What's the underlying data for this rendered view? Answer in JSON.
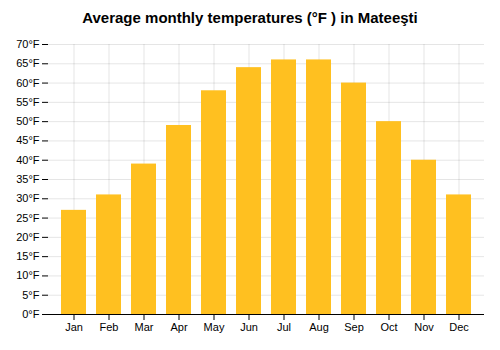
{
  "chart_data": {
    "type": "bar",
    "title": "Average monthly temperatures (°F ) in Mateeşti",
    "categories": [
      "Jan",
      "Feb",
      "Mar",
      "Apr",
      "May",
      "Jun",
      "Jul",
      "Aug",
      "Sep",
      "Oct",
      "Nov",
      "Dec"
    ],
    "values": [
      27,
      31,
      39,
      49,
      58,
      64,
      66,
      66,
      60,
      50,
      40,
      31
    ],
    "color": "#FFC020",
    "ylim": [
      0,
      70
    ],
    "yticks": [
      {
        "value": 0,
        "label": "0°F"
      },
      {
        "value": 5,
        "label": "5°F"
      },
      {
        "value": 10,
        "label": "10°F"
      },
      {
        "value": 15,
        "label": "15°F"
      },
      {
        "value": 20,
        "label": "20°F"
      },
      {
        "value": 25,
        "label": "25°F"
      },
      {
        "value": 30,
        "label": "30°F"
      },
      {
        "value": 35,
        "label": "35°F"
      },
      {
        "value": 40,
        "label": "40°F"
      },
      {
        "value": 45,
        "label": "45°F"
      },
      {
        "value": 50,
        "label": "50°F"
      },
      {
        "value": 55,
        "label": "55°F"
      },
      {
        "value": 60,
        "label": "60°F"
      },
      {
        "value": 65,
        "label": "65°F"
      },
      {
        "value": 70,
        "label": "70°F"
      }
    ],
    "grid": true
  }
}
